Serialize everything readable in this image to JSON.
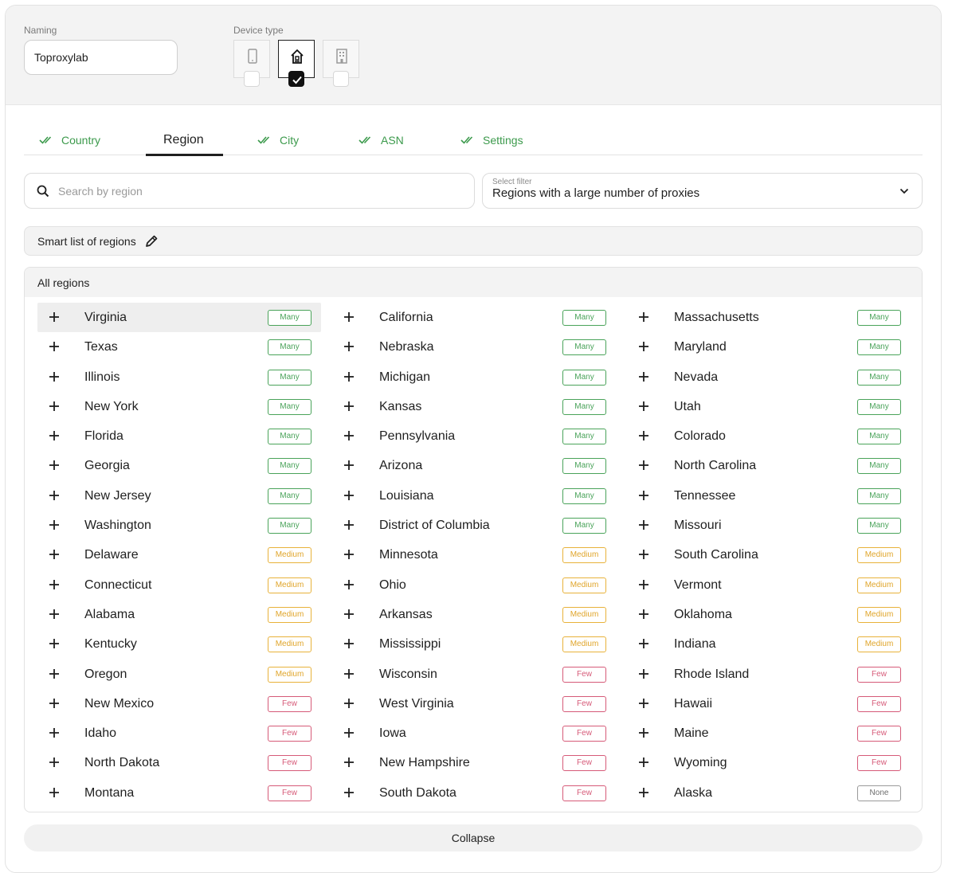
{
  "naming": {
    "label": "Naming",
    "value": "Toproxylab"
  },
  "device_type": {
    "label": "Device type",
    "options": [
      {
        "icon": "mobile-icon",
        "checked": false
      },
      {
        "icon": "home-icon",
        "checked": true
      },
      {
        "icon": "office-building-icon",
        "checked": false
      }
    ]
  },
  "tabs": [
    {
      "label": "Country",
      "done": true,
      "active": false
    },
    {
      "label": "Region",
      "done": false,
      "active": true
    },
    {
      "label": "City",
      "done": true,
      "active": false
    },
    {
      "label": "ASN",
      "done": true,
      "active": false
    },
    {
      "label": "Settings",
      "done": true,
      "active": false
    }
  ],
  "search": {
    "placeholder": "Search by region",
    "value": ""
  },
  "filter": {
    "label": "Select filter",
    "value": "Regions with a large number of proxies"
  },
  "smart_list": {
    "label": "Smart list of regions"
  },
  "all_regions": {
    "title": "All regions",
    "columns": [
      [
        {
          "name": "Virginia",
          "badge": "Many"
        },
        {
          "name": "Texas",
          "badge": "Many"
        },
        {
          "name": "Illinois",
          "badge": "Many"
        },
        {
          "name": "New York",
          "badge": "Many"
        },
        {
          "name": "Florida",
          "badge": "Many"
        },
        {
          "name": "Georgia",
          "badge": "Many"
        },
        {
          "name": "New Jersey",
          "badge": "Many"
        },
        {
          "name": "Washington",
          "badge": "Many"
        },
        {
          "name": "Delaware",
          "badge": "Medium"
        },
        {
          "name": "Connecticut",
          "badge": "Medium"
        },
        {
          "name": "Alabama",
          "badge": "Medium"
        },
        {
          "name": "Kentucky",
          "badge": "Medium"
        },
        {
          "name": "Oregon",
          "badge": "Medium"
        },
        {
          "name": "New Mexico",
          "badge": "Few"
        },
        {
          "name": "Idaho",
          "badge": "Few"
        },
        {
          "name": "North Dakota",
          "badge": "Few"
        },
        {
          "name": "Montana",
          "badge": "Few"
        }
      ],
      [
        {
          "name": "California",
          "badge": "Many"
        },
        {
          "name": "Nebraska",
          "badge": "Many"
        },
        {
          "name": "Michigan",
          "badge": "Many"
        },
        {
          "name": "Kansas",
          "badge": "Many"
        },
        {
          "name": "Pennsylvania",
          "badge": "Many"
        },
        {
          "name": "Arizona",
          "badge": "Many"
        },
        {
          "name": "Louisiana",
          "badge": "Many"
        },
        {
          "name": "District of Columbia",
          "badge": "Many"
        },
        {
          "name": "Minnesota",
          "badge": "Medium"
        },
        {
          "name": "Ohio",
          "badge": "Medium"
        },
        {
          "name": "Arkansas",
          "badge": "Medium"
        },
        {
          "name": "Mississippi",
          "badge": "Medium"
        },
        {
          "name": "Wisconsin",
          "badge": "Few"
        },
        {
          "name": "West Virginia",
          "badge": "Few"
        },
        {
          "name": "Iowa",
          "badge": "Few"
        },
        {
          "name": "New Hampshire",
          "badge": "Few"
        },
        {
          "name": "South Dakota",
          "badge": "Few"
        }
      ],
      [
        {
          "name": "Massachusetts",
          "badge": "Many"
        },
        {
          "name": "Maryland",
          "badge": "Many"
        },
        {
          "name": "Nevada",
          "badge": "Many"
        },
        {
          "name": "Utah",
          "badge": "Many"
        },
        {
          "name": "Colorado",
          "badge": "Many"
        },
        {
          "name": "North Carolina",
          "badge": "Many"
        },
        {
          "name": "Tennessee",
          "badge": "Many"
        },
        {
          "name": "Missouri",
          "badge": "Many"
        },
        {
          "name": "South Carolina",
          "badge": "Medium"
        },
        {
          "name": "Vermont",
          "badge": "Medium"
        },
        {
          "name": "Oklahoma",
          "badge": "Medium"
        },
        {
          "name": "Indiana",
          "badge": "Medium"
        },
        {
          "name": "Rhode Island",
          "badge": "Few"
        },
        {
          "name": "Hawaii",
          "badge": "Few"
        },
        {
          "name": "Maine",
          "badge": "Few"
        },
        {
          "name": "Wyoming",
          "badge": "Few"
        },
        {
          "name": "Alaska",
          "badge": "None"
        }
      ]
    ]
  },
  "collapse_label": "Collapse",
  "colors": {
    "accent_green": "#3c9a4c",
    "many": "#4aa35a",
    "medium": "#e0a52a",
    "few": "#d65a78",
    "none": "#6f6f6f"
  }
}
